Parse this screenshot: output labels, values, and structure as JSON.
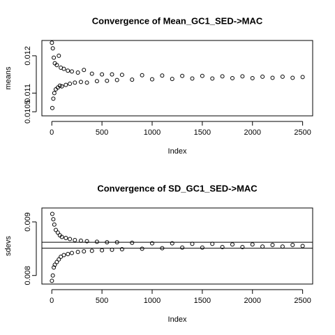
{
  "chart_data": [
    {
      "type": "scatter",
      "title": "Convergence of Mean_GC1_SED->MAC",
      "xlabel": "Index",
      "ylabel": "means",
      "color": "#000000",
      "x": [
        1,
        5,
        10,
        15,
        20,
        25,
        30,
        40,
        50,
        60,
        70,
        80,
        90,
        100,
        120,
        140,
        160,
        180,
        200,
        230,
        260,
        290,
        320,
        350,
        400,
        450,
        500,
        550,
        600,
        650,
        700,
        800,
        900,
        1000,
        1100,
        1200,
        1300,
        1400,
        1500,
        1600,
        1700,
        1800,
        1900,
        2000,
        2100,
        2200,
        2300,
        2400,
        2500
      ],
      "values": [
        0.01235,
        0.0106,
        0.0122,
        0.01085,
        0.01195,
        0.011,
        0.0118,
        0.0111,
        0.01175,
        0.01115,
        0.012,
        0.0112,
        0.01168,
        0.01118,
        0.01165,
        0.01122,
        0.0116,
        0.01125,
        0.01158,
        0.01128,
        0.01155,
        0.0113,
        0.01162,
        0.01128,
        0.01152,
        0.01132,
        0.0115,
        0.01133,
        0.0115,
        0.01135,
        0.01149,
        0.01136,
        0.01148,
        0.01137,
        0.01147,
        0.01138,
        0.01146,
        0.01139,
        0.01146,
        0.01139,
        0.01145,
        0.0114,
        0.01145,
        0.0114,
        0.01144,
        0.01141,
        0.01144,
        0.01141,
        0.01143
      ],
      "xlim": [
        -99,
        2600
      ],
      "xticks": [
        0,
        500,
        1000,
        1500,
        2000,
        2500
      ],
      "ylim": [
        0.01039,
        0.01241
      ],
      "yticks": [
        0.0105,
        0.011,
        0.012
      ]
    },
    {
      "type": "scatter",
      "title": "Convergence of SD_GC1_SED->MAC",
      "xlabel": "Index",
      "ylabel": "sdevs",
      "color": "#000000",
      "x": [
        1,
        5,
        10,
        15,
        20,
        25,
        30,
        40,
        50,
        60,
        70,
        80,
        90,
        100,
        120,
        140,
        160,
        180,
        200,
        230,
        260,
        290,
        320,
        350,
        400,
        450,
        500,
        550,
        600,
        650,
        700,
        800,
        900,
        1000,
        1100,
        1200,
        1300,
        1400,
        1500,
        1600,
        1700,
        1800,
        1900,
        2000,
        2100,
        2200,
        2300,
        2400,
        2500
      ],
      "values": [
        0.0079,
        0.00915,
        0.008,
        0.00905,
        0.00815,
        0.00895,
        0.0082,
        0.00885,
        0.00825,
        0.0088,
        0.0083,
        0.00875,
        0.00835,
        0.00872,
        0.00838,
        0.0087,
        0.0084,
        0.00868,
        0.00842,
        0.00866,
        0.00844,
        0.00865,
        0.00845,
        0.00864,
        0.00846,
        0.00863,
        0.00847,
        0.00862,
        0.00848,
        0.00862,
        0.00849,
        0.00861,
        0.0085,
        0.0086,
        0.00851,
        0.0086,
        0.00852,
        0.00859,
        0.00852,
        0.00859,
        0.00853,
        0.00858,
        0.00853,
        0.00858,
        0.00854,
        0.00857,
        0.00854,
        0.00857,
        0.00855
      ],
      "hlines": [
        0.00862,
        0.00851
      ],
      "xlim": [
        -99,
        2600
      ],
      "xticks": [
        0,
        500,
        1000,
        1500,
        2000,
        2500
      ],
      "ylim": [
        0.00784,
        0.00926
      ],
      "yticks": [
        0.008,
        0.009
      ]
    }
  ]
}
